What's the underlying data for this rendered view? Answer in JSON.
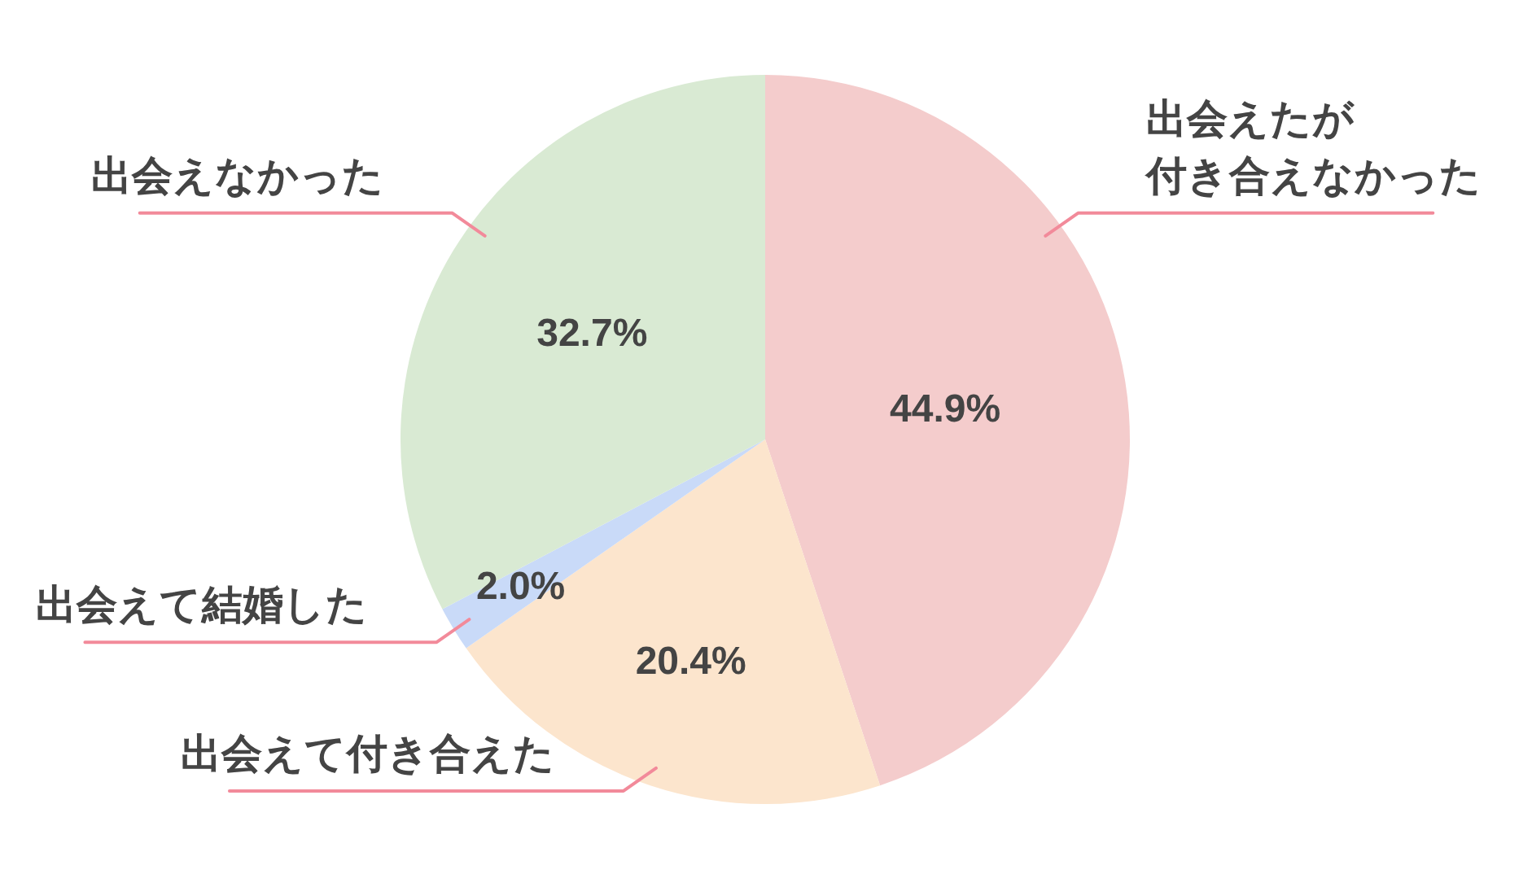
{
  "chart_data": {
    "type": "pie",
    "categories": [
      "出会えたが付き合えなかった",
      "出会えて付き合えた",
      "出会えて結婚した",
      "出会えなかった"
    ],
    "values": [
      44.9,
      20.4,
      2.0,
      32.7
    ],
    "colors": [
      "#f4cccc",
      "#fce5cd",
      "#c9daf8",
      "#d9ead3"
    ],
    "value_labels": [
      "44.9%",
      "20.4%",
      "2.0%",
      "32.7%"
    ]
  }
}
